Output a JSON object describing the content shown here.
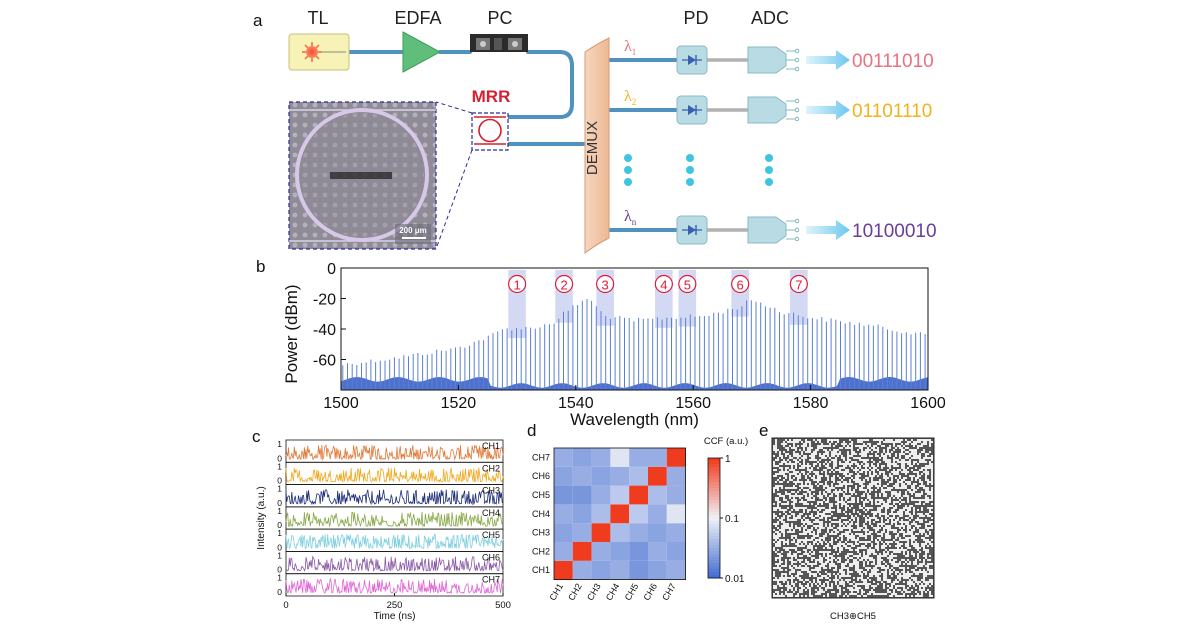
{
  "panel_a": {
    "letter": "a",
    "components": {
      "tl": "TL",
      "edfa": "EDFA",
      "pc": "PC",
      "mrr": "MRR",
      "demux": "DEMUX",
      "pd": "PD",
      "adc": "ADC"
    },
    "scale_bar": "200 μm",
    "lambda_symbol": "λ",
    "channels": [
      {
        "sub": "1",
        "bits": "00111010",
        "color": "#e8727e"
      },
      {
        "sub": "2",
        "bits": "01101110",
        "color": "#f2b21b"
      },
      {
        "sub": "n",
        "bits": "10100010",
        "color": "#6a3d9a"
      }
    ],
    "colors": {
      "fiber": "#4f92bf",
      "pd_box": "#b9dce4",
      "demux": "#f2c6a8",
      "tl_box": "#f7f2b6",
      "edfa": "#5fbf7a",
      "mrr_red": "#d42030",
      "arrow": "#8fd6f2",
      "dots": "#3ec6e0"
    }
  },
  "panel_b": {
    "letter": "b",
    "chart_data": {
      "type": "area",
      "xlabel": "Wavelength (nm)",
      "ylabel": "Power (dBm)",
      "xlim": [
        1500,
        1600
      ],
      "ylim": [
        -80,
        0
      ],
      "xticks": [
        "1500",
        "1520",
        "1540",
        "1560",
        "1580",
        "1600"
      ],
      "yticks": [
        "0",
        "-20",
        "-40",
        "-60"
      ],
      "envelope": {
        "x": [
          1500,
          1510,
          1520,
          1525,
          1528,
          1532,
          1536,
          1538,
          1540,
          1542,
          1543,
          1545,
          1550,
          1556,
          1562,
          1566,
          1568,
          1570,
          1575,
          1580,
          1590,
          1600
        ],
        "y": [
          -62,
          -57,
          -51,
          -44,
          -38,
          -38,
          -35,
          -28,
          -23,
          -18,
          -22,
          -30,
          -33,
          -31,
          -30,
          -26,
          -24,
          -19,
          -27,
          -31,
          -36,
          -43
        ]
      },
      "floor_dbm": -75,
      "channels": [
        {
          "label": "1",
          "center_nm": 1530
        },
        {
          "label": "2",
          "center_nm": 1538
        },
        {
          "label": "3",
          "center_nm": 1545
        },
        {
          "label": "4",
          "center_nm": 1555
        },
        {
          "label": "5",
          "center_nm": 1559
        },
        {
          "label": "6",
          "center_nm": 1568
        },
        {
          "label": "7",
          "center_nm": 1578
        }
      ],
      "band_color": "#c8cff0",
      "line_color": "#5b7fd6",
      "marker_color": "#e01a38"
    }
  },
  "panel_c": {
    "letter": "c",
    "chart_data": {
      "type": "line",
      "xlabel": "Time (ns)",
      "ylabel": "Intensity (a.u.)",
      "xlim": [
        0,
        500
      ],
      "xticks": [
        "0",
        "250",
        "500"
      ],
      "yticks": [
        "1",
        "0"
      ],
      "series": [
        {
          "name": "CH1",
          "color": "#e07a3a"
        },
        {
          "name": "CH2",
          "color": "#efa81e"
        },
        {
          "name": "CH3",
          "color": "#1f2f7a"
        },
        {
          "name": "CH4",
          "color": "#8aaa4a"
        },
        {
          "name": "CH5",
          "color": "#7fcfe0"
        },
        {
          "name": "CH6",
          "color": "#8a5aa8"
        },
        {
          "name": "CH7",
          "color": "#e066d6"
        }
      ]
    }
  },
  "panel_d": {
    "letter": "d",
    "chart_data": {
      "type": "heatmap",
      "categories": [
        "CH1",
        "CH2",
        "CH3",
        "CH4",
        "CH5",
        "CH6",
        "CH7"
      ],
      "values": [
        [
          1.0,
          0.03,
          0.025,
          0.03,
          0.02,
          0.025,
          0.03
        ],
        [
          0.03,
          1.0,
          0.03,
          0.025,
          0.02,
          0.03,
          0.025
        ],
        [
          0.025,
          0.03,
          1.0,
          0.04,
          0.03,
          0.025,
          0.03
        ],
        [
          0.03,
          0.025,
          0.04,
          1.0,
          0.05,
          0.03,
          0.08
        ],
        [
          0.02,
          0.02,
          0.03,
          0.05,
          1.0,
          0.04,
          0.03
        ],
        [
          0.025,
          0.03,
          0.025,
          0.03,
          0.04,
          1.0,
          0.03
        ],
        [
          0.03,
          0.025,
          0.03,
          0.08,
          0.03,
          0.03,
          1.0
        ]
      ],
      "colorbar_title": "CCF (a.u.)",
      "colorbar_ticks": [
        "1",
        "0.1",
        "0.01"
      ],
      "scale": "log"
    }
  },
  "panel_e": {
    "letter": "e",
    "caption": "CH3⊕CH5"
  }
}
